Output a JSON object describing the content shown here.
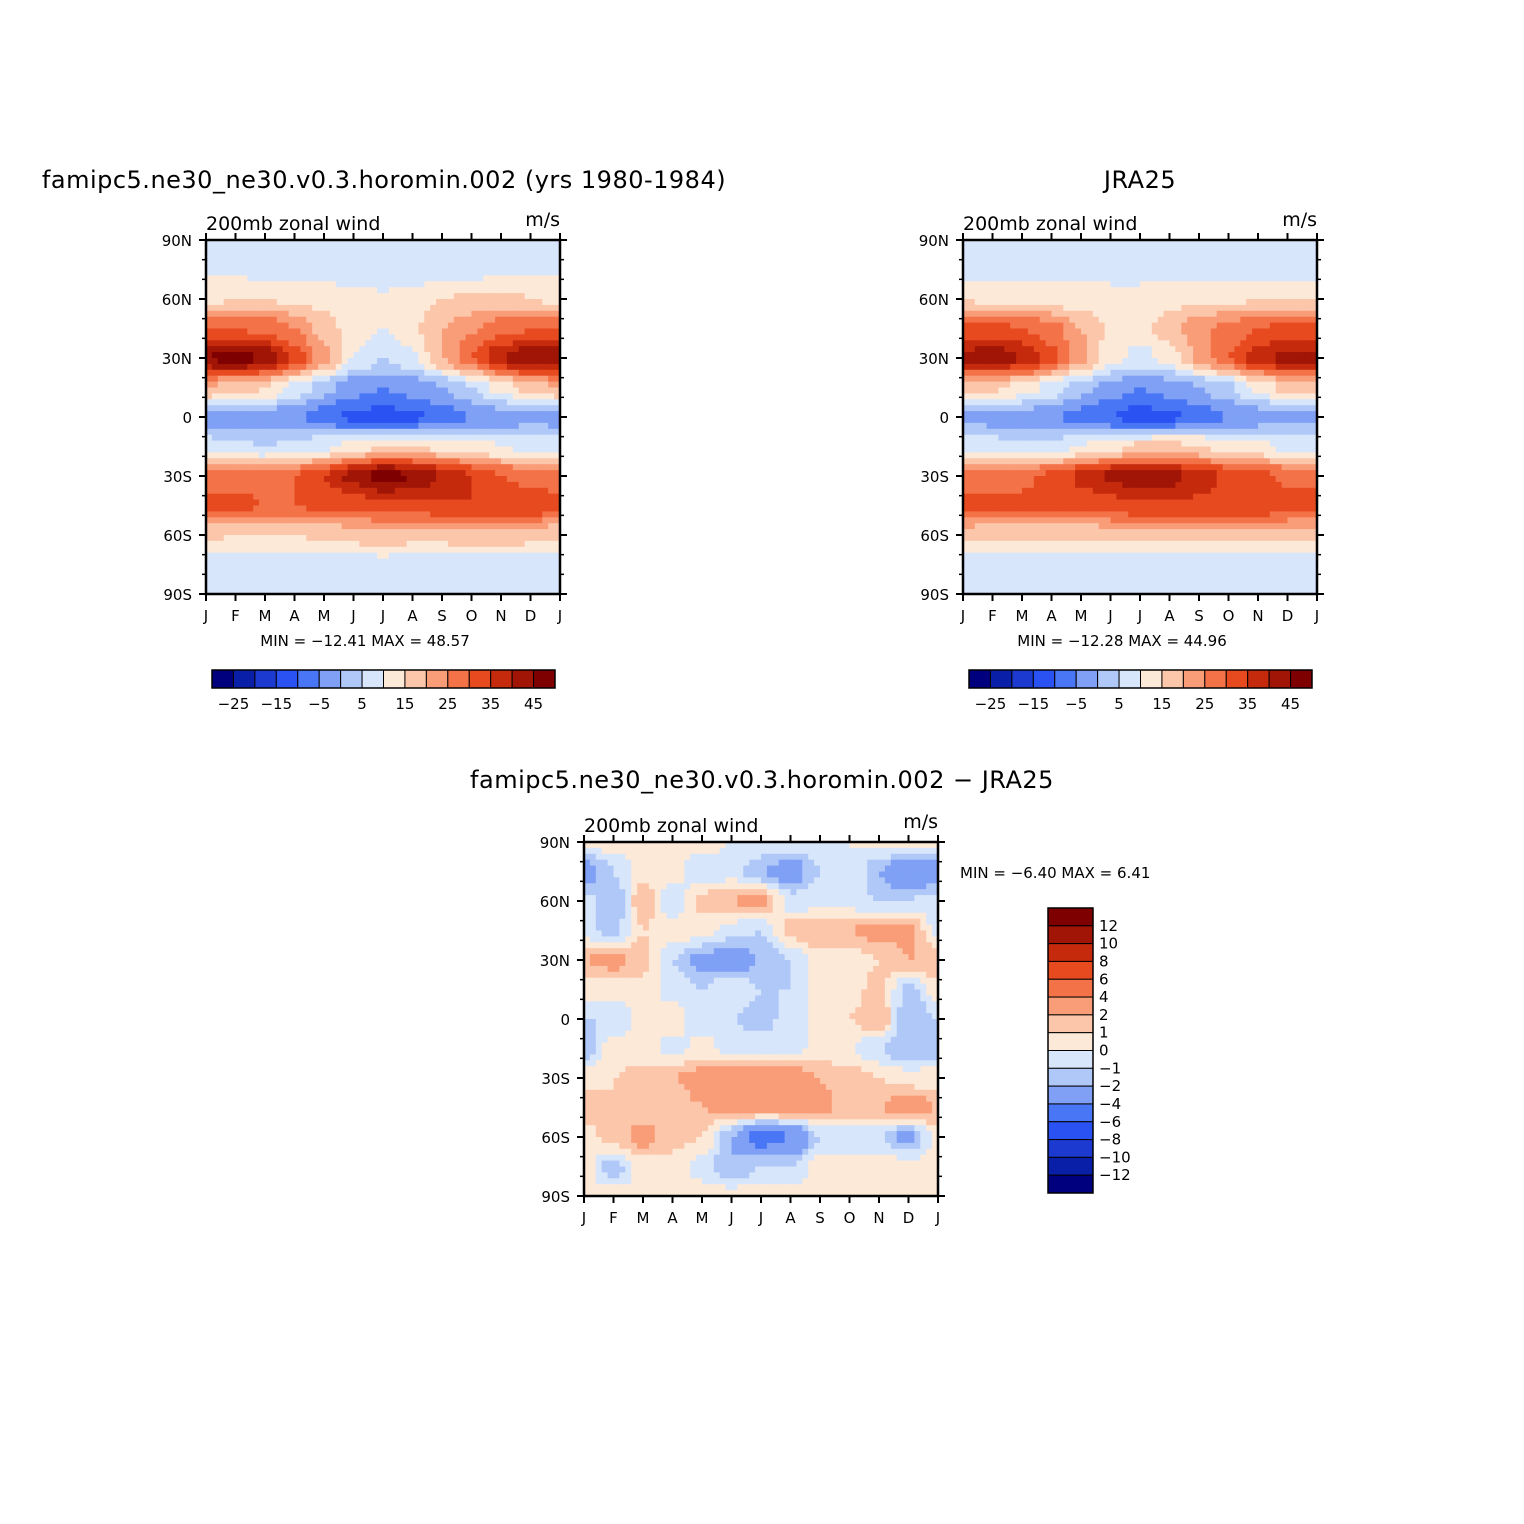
{
  "colors": {
    "abs_scale": [
      "#00007f",
      "#0a1fa8",
      "#1c3ad0",
      "#2a52f2",
      "#4976f5",
      "#7fa0f5",
      "#b0c8f8",
      "#d8e6fb",
      "#fde9d8",
      "#fcc6aa",
      "#f99c78",
      "#f47248",
      "#e84a20",
      "#c52a0c",
      "#a01505",
      "#7e0000"
    ],
    "diff_scale": [
      "#00007f",
      "#0a1fa8",
      "#1c3ad0",
      "#2a52f2",
      "#4976f5",
      "#7fa0f5",
      "#b0c8f8",
      "#d8e6fb",
      "#fde9d8",
      "#fcc6aa",
      "#f99c78",
      "#f47248",
      "#e84a20",
      "#c52a0c",
      "#a01505",
      "#7e0000"
    ]
  },
  "panels": [
    {
      "id": "model",
      "title": "famipc5.ne30_ne30.v0.3.horomin.002 (yrs 1980-1984)",
      "left_label": "200mb zonal wind",
      "right_label": "m/s",
      "min_max": "MIN = −12.41 MAX =   48.57",
      "x_ticks": [
        "J",
        "F",
        "M",
        "A",
        "M",
        "J",
        "J",
        "A",
        "S",
        "O",
        "N",
        "D",
        "J"
      ],
      "y_ticks": [
        "90N",
        "60N",
        "30N",
        "0",
        "30S",
        "60S",
        "90S"
      ],
      "colorbar_labels": [
        "−25",
        "−15",
        "−5",
        "5",
        "15",
        "25",
        "35",
        "45"
      ]
    },
    {
      "id": "obs",
      "title": "JRA25",
      "left_label": "200mb zonal wind",
      "right_label": "m/s",
      "min_max": "MIN = −12.28 MAX =   44.96",
      "x_ticks": [
        "J",
        "F",
        "M",
        "A",
        "M",
        "J",
        "J",
        "A",
        "S",
        "O",
        "N",
        "D",
        "J"
      ],
      "y_ticks": [
        "90N",
        "60N",
        "30N",
        "0",
        "30S",
        "60S",
        "90S"
      ],
      "colorbar_labels": [
        "−25",
        "−15",
        "−5",
        "5",
        "15",
        "25",
        "35",
        "45"
      ]
    },
    {
      "id": "diff",
      "title": "famipc5.ne30_ne30.v0.3.horomin.002 − JRA25",
      "left_label": "200mb zonal wind",
      "right_label": "m/s",
      "min_max": "MIN =   −6.40 MAX =    6.41",
      "x_ticks": [
        "J",
        "F",
        "M",
        "A",
        "M",
        "J",
        "J",
        "A",
        "S",
        "O",
        "N",
        "D",
        "J"
      ],
      "y_ticks": [
        "90N",
        "60N",
        "30N",
        "0",
        "30S",
        "60S",
        "90S"
      ],
      "colorbar_labels": [
        "12",
        "10",
        "8",
        "6",
        "4",
        "2",
        "1",
        "0",
        "−1",
        "−2",
        "−4",
        "−6",
        "−8",
        "−10",
        "−12"
      ]
    }
  ],
  "chart_data": [
    {
      "type": "heatmap",
      "panel": "model",
      "title": "famipc5.ne30_ne30.v0.3.horomin.002 (yrs 1980-1984)",
      "variable": "200mb zonal wind",
      "units": "m/s",
      "x": [
        "J",
        "F",
        "M",
        "A",
        "M",
        "J",
        "J",
        "A",
        "S",
        "O",
        "N",
        "D",
        "J"
      ],
      "y": [
        90,
        75,
        60,
        45,
        30,
        15,
        0,
        -15,
        -30,
        -45,
        -60,
        -75,
        -90
      ],
      "values": [
        [
          7,
          7,
          7,
          7,
          6,
          5,
          5,
          6,
          6,
          7,
          7,
          7,
          7
        ],
        [
          9,
          9,
          8,
          8,
          8,
          7,
          6,
          6,
          7,
          8,
          9,
          9,
          9
        ],
        [
          14,
          15,
          15,
          14,
          13,
          12,
          11,
          13,
          15,
          16,
          16,
          15,
          14
        ],
        [
          30,
          30,
          29,
          25,
          18,
          12,
          10,
          14,
          20,
          24,
          28,
          30,
          30
        ],
        [
          45,
          48,
          44,
          34,
          22,
          10,
          5,
          9,
          20,
          30,
          40,
          45,
          45
        ],
        [
          20,
          18,
          15,
          9,
          2,
          -3,
          -5,
          -3,
          0,
          5,
          12,
          18,
          20
        ],
        [
          -2,
          -3,
          -3,
          -4,
          -8,
          -11,
          -12,
          -11,
          -8,
          -5,
          -3,
          -2,
          -2
        ],
        [
          7,
          6,
          5,
          6,
          9,
          12,
          15,
          15,
          14,
          12,
          10,
          8,
          7
        ],
        [
          26,
          27,
          28,
          30,
          35,
          42,
          48,
          45,
          40,
          35,
          30,
          28,
          26
        ],
        [
          33,
          32,
          30,
          30,
          31,
          32,
          33,
          33,
          34,
          35,
          35,
          34,
          33
        ],
        [
          16,
          15,
          15,
          15,
          16,
          17,
          18,
          17,
          17,
          18,
          18,
          17,
          16
        ],
        [
          7,
          6,
          6,
          6,
          6,
          7,
          8,
          7,
          7,
          7,
          7,
          7,
          7
        ],
        [
          5,
          5,
          5,
          5,
          5,
          5,
          5,
          5,
          5,
          5,
          5,
          5,
          5
        ]
      ],
      "levels": [
        -25,
        -20,
        -15,
        -10,
        -5,
        0,
        5,
        10,
        15,
        20,
        25,
        30,
        35,
        40,
        45
      ],
      "min": -12.41,
      "max": 48.57
    },
    {
      "type": "heatmap",
      "panel": "obs",
      "title": "JRA25",
      "variable": "200mb zonal wind",
      "units": "m/s",
      "x": [
        "J",
        "F",
        "M",
        "A",
        "M",
        "J",
        "J",
        "A",
        "S",
        "O",
        "N",
        "D",
        "J"
      ],
      "y": [
        90,
        75,
        60,
        45,
        30,
        15,
        0,
        -15,
        -30,
        -45,
        -60,
        -75,
        -90
      ],
      "values": [
        [
          6,
          6,
          6,
          6,
          6,
          6,
          6,
          6,
          6,
          6,
          6,
          6,
          6
        ],
        [
          8,
          8,
          8,
          8,
          9,
          9,
          8,
          8,
          8,
          8,
          8,
          8,
          8
        ],
        [
          15,
          14,
          13,
          13,
          12,
          11,
          12,
          13,
          14,
          14,
          15,
          15,
          15
        ],
        [
          31,
          31,
          30,
          27,
          20,
          14,
          13,
          18,
          23,
          27,
          30,
          31,
          31
        ],
        [
          42,
          44,
          40,
          32,
          22,
          12,
          8,
          12,
          21,
          30,
          38,
          42,
          42
        ],
        [
          18,
          16,
          13,
          8,
          2,
          -2,
          -5,
          -3,
          0,
          4,
          11,
          17,
          18
        ],
        [
          -1,
          -2,
          -3,
          -4,
          -7,
          -10,
          -12,
          -11,
          -8,
          -5,
          -3,
          -2,
          -1
        ],
        [
          8,
          7,
          6,
          7,
          10,
          13,
          16,
          16,
          15,
          13,
          11,
          9,
          8
        ],
        [
          27,
          28,
          29,
          31,
          36,
          41,
          44,
          42,
          38,
          34,
          31,
          29,
          27
        ],
        [
          33,
          32,
          31,
          31,
          32,
          33,
          34,
          34,
          34,
          34,
          34,
          33,
          33
        ],
        [
          17,
          16,
          16,
          16,
          16,
          17,
          17,
          17,
          17,
          17,
          17,
          17,
          17
        ],
        [
          7,
          6,
          6,
          6,
          7,
          7,
          7,
          7,
          7,
          7,
          7,
          7,
          7
        ],
        [
          5,
          5,
          5,
          5,
          5,
          5,
          5,
          5,
          5,
          5,
          5,
          5,
          5
        ]
      ],
      "levels": [
        -25,
        -20,
        -15,
        -10,
        -5,
        0,
        5,
        10,
        15,
        20,
        25,
        30,
        35,
        40,
        45
      ],
      "min": -12.28,
      "max": 44.96
    },
    {
      "type": "heatmap",
      "panel": "diff",
      "title": "famipc5.ne30_ne30.v0.3.horomin.002 − JRA25",
      "variable": "200mb zonal wind",
      "units": "m/s",
      "x": [
        "J",
        "F",
        "M",
        "A",
        "M",
        "J",
        "J",
        "A",
        "S",
        "O",
        "N",
        "D",
        "J"
      ],
      "y": [
        90,
        75,
        60,
        45,
        30,
        15,
        0,
        -15,
        -30,
        -45,
        -60,
        -75,
        -90
      ],
      "values": [
        [
          0.5,
          0.5,
          0.5,
          0.5,
          0.5,
          0,
          0,
          0,
          -0.5,
          0,
          0.5,
          0.5,
          0.5
        ],
        [
          -3,
          -1,
          0.5,
          0.5,
          -1,
          -0.5,
          -2,
          -3,
          -1,
          0,
          -2,
          -4,
          -3
        ],
        [
          -0.5,
          -2,
          2,
          -1,
          1.5,
          2,
          2.5,
          -0.5,
          -0.5,
          -0.5,
          -1,
          -1,
          -0.5
        ],
        [
          -0.5,
          -1.5,
          1,
          0.5,
          0.5,
          -0.5,
          -1,
          1.5,
          2,
          2,
          2.5,
          2.5,
          -0.5
        ],
        [
          2,
          2.5,
          1.5,
          -1,
          -2.5,
          -3,
          -2,
          -1,
          0.5,
          0.5,
          1,
          2,
          2
        ],
        [
          0.5,
          0.5,
          0.5,
          -0.5,
          -1,
          0,
          -1,
          -1,
          0.5,
          0.5,
          1.5,
          -1.5,
          0.5
        ],
        [
          -1,
          -1,
          0.5,
          1,
          -1,
          -1,
          -1.5,
          -0.5,
          0.5,
          1,
          2,
          -2,
          -1
        ],
        [
          -1.5,
          0.5,
          0.5,
          -0.5,
          0.5,
          -0.5,
          -0.5,
          -0.5,
          0.5,
          0,
          -1,
          -2,
          -1.5
        ],
        [
          0.5,
          1,
          1.5,
          2,
          2.5,
          3,
          3.5,
          3,
          2,
          1.5,
          1,
          0.5,
          0.5
        ],
        [
          2,
          1,
          1,
          1.5,
          2,
          2.5,
          2.5,
          2.5,
          2.5,
          1.5,
          2,
          3,
          2
        ],
        [
          0.5,
          1.5,
          2.5,
          1.5,
          1,
          -2,
          -5,
          -4,
          -1,
          -0.5,
          -1,
          -2.5,
          0.5
        ],
        [
          0.5,
          -1.5,
          0.5,
          0.5,
          -0.5,
          -2,
          -1,
          -1,
          0.5,
          0.5,
          0.5,
          0.5,
          0.5
        ],
        [
          0.5,
          0.5,
          0.5,
          0.5,
          0.5,
          0.5,
          0.5,
          0.5,
          0.5,
          0.5,
          0.5,
          0.5,
          0.5
        ]
      ],
      "levels": [
        -12,
        -10,
        -8,
        -6,
        -4,
        -2,
        -1,
        0,
        1,
        2,
        4,
        6,
        8,
        10,
        12
      ],
      "min": -6.4,
      "max": 6.41
    }
  ]
}
